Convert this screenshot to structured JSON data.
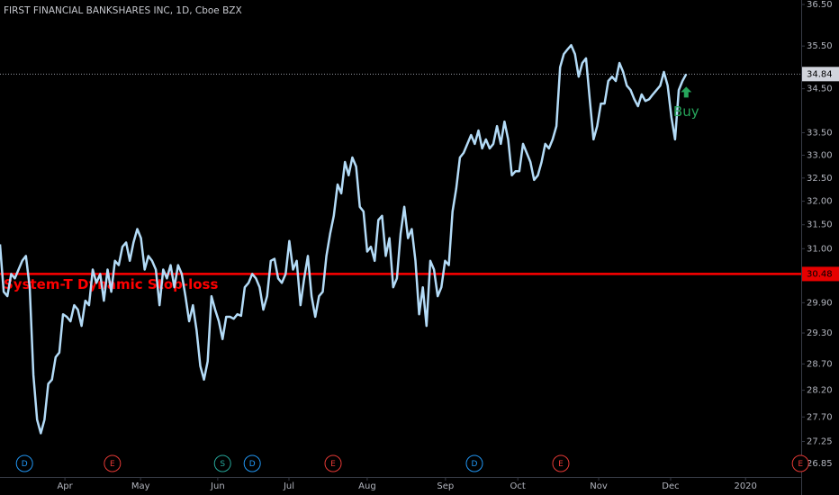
{
  "chart_data": {
    "type": "line",
    "title": "FIRST FINANCIAL BANKSHARES INC, 1D, Cboe BZX",
    "log_scale": true,
    "color": "#b3dbf7",
    "values": [
      31.09,
      30.12,
      30.03,
      30.48,
      30.39,
      30.57,
      30.75,
      30.85,
      30.21,
      28.49,
      27.65,
      27.4,
      27.65,
      28.32,
      28.4,
      28.83,
      28.92,
      29.67,
      29.62,
      29.53,
      29.85,
      29.76,
      29.44,
      29.94,
      29.85,
      30.57,
      30.3,
      30.48,
      29.94,
      30.57,
      30.12,
      30.75,
      30.66,
      31.04,
      31.13,
      30.75,
      31.13,
      31.41,
      31.22,
      30.57,
      30.85,
      30.75,
      30.57,
      29.85,
      30.57,
      30.39,
      30.66,
      30.21,
      30.66,
      30.48,
      30.03,
      29.53,
      29.85,
      29.35,
      28.66,
      28.4,
      28.75,
      30.03,
      29.76,
      29.53,
      29.18,
      29.62,
      29.62,
      29.58,
      29.67,
      29.64,
      30.21,
      30.3,
      30.48,
      30.39,
      30.21,
      29.76,
      30.03,
      30.75,
      30.79,
      30.39,
      30.3,
      30.48,
      31.16,
      30.57,
      30.75,
      29.85,
      30.39,
      30.85,
      30.03,
      29.62,
      30.03,
      30.12,
      30.85,
      31.31,
      31.69,
      32.36,
      32.17,
      32.85,
      32.56,
      32.95,
      32.75,
      31.88,
      31.78,
      30.94,
      31.04,
      30.75,
      31.6,
      31.69,
      30.85,
      31.22,
      30.21,
      30.39,
      31.31,
      31.88,
      31.22,
      31.41,
      30.75,
      29.67,
      30.21,
      29.44,
      30.75,
      30.57,
      30.03,
      30.21,
      30.75,
      30.66,
      31.78,
      32.27,
      32.95,
      33.05,
      33.25,
      33.45,
      33.25,
      33.55,
      33.15,
      33.35,
      33.15,
      33.25,
      33.65,
      33.25,
      33.75,
      33.35,
      32.56,
      32.65,
      32.65,
      33.25,
      33.05,
      32.85,
      32.46,
      32.56,
      32.85,
      33.25,
      33.15,
      33.35,
      33.65,
      35.0,
      35.31,
      35.42,
      35.52,
      35.31,
      34.78,
      35.1,
      35.21,
      34.26,
      33.35,
      33.65,
      34.16,
      34.16,
      34.68,
      34.78,
      34.68,
      35.1,
      34.89,
      34.57,
      34.47,
      34.26,
      34.1,
      34.37,
      34.22,
      34.26,
      34.37,
      34.47,
      34.57,
      34.89,
      34.57,
      33.85,
      33.35,
      34.47,
      34.68,
      34.84
    ],
    "xlim": [
      0,
      216
    ],
    "xticks": [
      {
        "value": 17.5,
        "label": "Apr"
      },
      {
        "value": 37.9,
        "label": "May"
      },
      {
        "value": 58.7,
        "label": "Jun"
      },
      {
        "value": 77.9,
        "label": "Jul"
      },
      {
        "value": 99,
        "label": "Aug"
      },
      {
        "value": 120.1,
        "label": "Sep"
      },
      {
        "value": 139.6,
        "label": "Oct"
      },
      {
        "value": 161.4,
        "label": "Nov"
      },
      {
        "value": 180.8,
        "label": "Dec"
      },
      {
        "value": 201,
        "label": "2020"
      }
    ],
    "ylim": [
      26.61,
      36.61
    ],
    "yticks": [
      {
        "value": 36.5,
        "label": "36.50"
      },
      {
        "value": 35.5,
        "label": "35.50"
      },
      {
        "value": 34.5,
        "label": "34.50"
      },
      {
        "value": 33.5,
        "label": "33.50"
      },
      {
        "value": 33,
        "label": "33.00"
      },
      {
        "value": 32.5,
        "label": "32.50"
      },
      {
        "value": 32,
        "label": "32.00"
      },
      {
        "value": 31.5,
        "label": "31.50"
      },
      {
        "value": 31,
        "label": "31.00"
      },
      {
        "value": 29.9,
        "label": "29.90"
      },
      {
        "value": 29.3,
        "label": "29.30"
      },
      {
        "value": 28.7,
        "label": "28.70"
      },
      {
        "value": 28.2,
        "label": "28.20"
      },
      {
        "value": 27.7,
        "label": "27.70"
      },
      {
        "value": 27.25,
        "label": "27.25"
      },
      {
        "value": 26.85,
        "label": "26.85"
      }
    ],
    "last_price": 34.84,
    "stop_loss": {
      "name": "System-T Dynamic Stop-loss",
      "value": 30.48,
      "color": "#ff0000"
    },
    "signal": {
      "label": "Buy",
      "x": 185,
      "color": "#26a65b"
    },
    "events": [
      {
        "label": "D",
        "x": 6.6,
        "color": "#2196f3"
      },
      {
        "label": "E",
        "x": 30.3,
        "color": "#e53935"
      },
      {
        "label": "S",
        "x": 60,
        "color": "#26a69a"
      },
      {
        "label": "D",
        "x": 68,
        "color": "#2196f3"
      },
      {
        "label": "E",
        "x": 89.8,
        "color": "#e53935"
      },
      {
        "label": "D",
        "x": 127.9,
        "color": "#2196f3"
      },
      {
        "label": "E",
        "x": 151.2,
        "color": "#e53935"
      },
      {
        "label": "E",
        "x": 215.8,
        "color": "#e53935"
      }
    ]
  }
}
